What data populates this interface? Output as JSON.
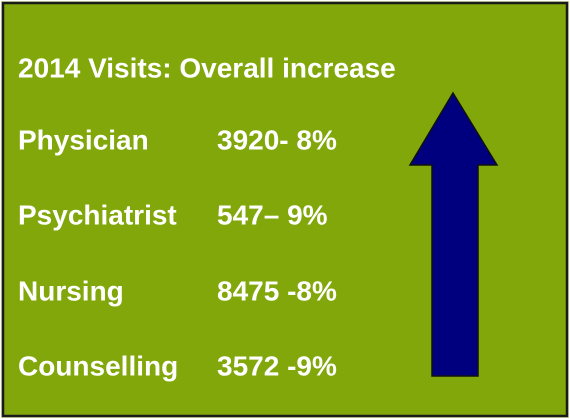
{
  "title": "2014 Visits: Overall increase",
  "rows": [
    {
      "label": "Physician",
      "value": "3920- 8%"
    },
    {
      "label": "Psychiatrist",
      "value": "547– 9%"
    },
    {
      "label": "Nursing",
      "value": "8475 -8%"
    },
    {
      "label": "Counselling",
      "value": "3572 -9%"
    }
  ]
}
